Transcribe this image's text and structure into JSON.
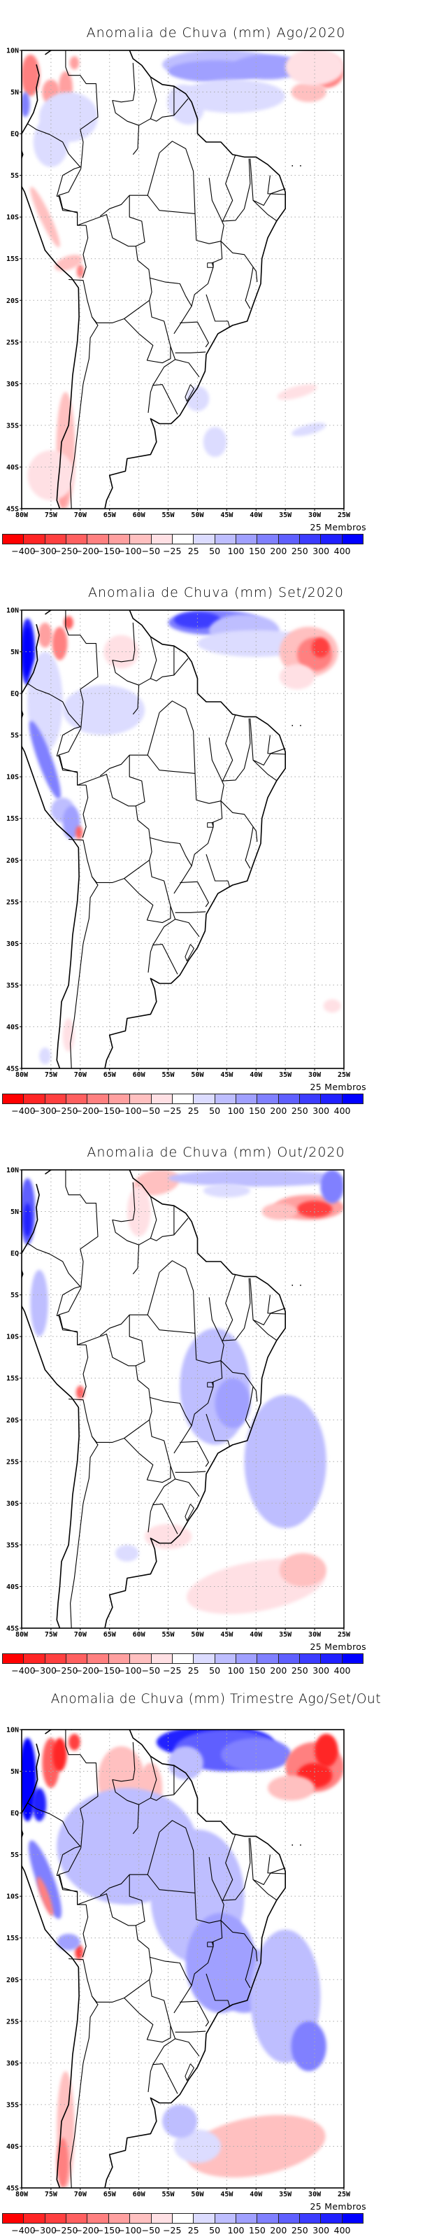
{
  "figure": {
    "shared": {
      "lat_ticks": [
        "10N",
        "5N",
        "EQ",
        "5S",
        "10S",
        "15S",
        "20S",
        "25S",
        "30S",
        "35S",
        "40S",
        "45S"
      ],
      "lon_ticks": [
        "80W",
        "75W",
        "70W",
        "65W",
        "60W",
        "55W",
        "50W",
        "45W",
        "40W",
        "35W",
        "30W",
        "25W"
      ],
      "members_label": "25 Membros",
      "colorbar": {
        "labels": [
          "-400",
          "-300",
          "-250",
          "-200",
          "-150",
          "-100",
          "-50",
          "-25",
          "25",
          "50",
          "100",
          "150",
          "200",
          "250",
          "300",
          "400"
        ],
        "colors": [
          "#ff0000",
          "#ff2525",
          "#ff4040",
          "#ff6060",
          "#ff8080",
          "#ffa0a0",
          "#ffc0c0",
          "#ffe0e4",
          "#ffffff",
          "#dcdcff",
          "#bebeff",
          "#a0a0ff",
          "#8080ff",
          "#5f5fff",
          "#3c3cff",
          "#2020ff",
          "#0000ff"
        ]
      }
    },
    "panels": [
      {
        "title": "Anomalia de Chuva (mm) Ago/2020"
      },
      {
        "title": "Anomalia de Chuva (mm) Set/2020"
      },
      {
        "title": "Anomalia de Chuva (mm) Out/2020"
      },
      {
        "title": "Anomalia de Chuva (mm) Trimestre Ago/Set/Out"
      }
    ]
  },
  "chart_data": [
    {
      "type": "heatmap",
      "title": "Anomalia de Chuva (mm) Ago/2020",
      "variable": "precipitation anomaly (mm)",
      "xlabel": "",
      "ylabel": "",
      "xlim": [
        -80,
        -25
      ],
      "ylim": [
        -45,
        10
      ],
      "grid": true,
      "legend": "bottom colorbar",
      "members": 25,
      "levels": [
        -400,
        -300,
        -250,
        -200,
        -150,
        -100,
        -50,
        -25,
        25,
        50,
        100,
        150,
        200,
        250,
        300,
        400
      ],
      "features": [
        {
          "region": "equatorial Atlantic N of Amazon mouth (~0-10N, 55W-35W)",
          "sign": "positive",
          "magnitude": "100-250"
        },
        {
          "region": "tropical Atlantic (~5-10N, 30W-25W)",
          "sign": "negative",
          "magnitude": "-150 to -300"
        },
        {
          "region": "Colombian Pacific coast (~5-10N, 80W-75W)",
          "sign": "negative",
          "magnitude": "-100 to -300"
        },
        {
          "region": "Pacific off Colombia (~3-6N, 79W)",
          "sign": "positive",
          "magnitude": "150-250"
        },
        {
          "region": "Peruvian Andes (~7-15S, 77W-72W)",
          "sign": "negative",
          "magnitude": "-50 to -150"
        },
        {
          "region": "south-central Chile (~32-45S, 75W-70W)",
          "sign": "negative",
          "magnitude": "-25 to -150"
        },
        {
          "region": "South Atlantic (~30S, 35W-27W)",
          "sign": "negative",
          "magnitude": "-25 to -50"
        },
        {
          "region": "Brazil interior",
          "sign": "near-zero",
          "magnitude": "-25 to 25"
        }
      ]
    },
    {
      "type": "heatmap",
      "title": "Anomalia de Chuva (mm) Set/2020",
      "variable": "precipitation anomaly (mm)",
      "xlim": [
        -80,
        -25
      ],
      "ylim": [
        -45,
        10
      ],
      "grid": true,
      "legend": "bottom colorbar",
      "members": 25,
      "levels": [
        -400,
        -300,
        -250,
        -200,
        -150,
        -100,
        -50,
        -25,
        25,
        50,
        100,
        150,
        200,
        250,
        300,
        400
      ],
      "features": [
        {
          "region": "equatorial Atlantic (~4-10N, 55W-40W)",
          "sign": "positive",
          "magnitude": "50-250"
        },
        {
          "region": "tropical Atlantic (~1-8N, 38W-25W)",
          "sign": "negative",
          "magnitude": "-50 to -250"
        },
        {
          "region": "Pacific off Colombia (~2-8N, 80W-78W)",
          "sign": "positive",
          "magnitude": "200-400"
        },
        {
          "region": "Colombian Andes (~4-8N, 76W-72W)",
          "sign": "negative",
          "magnitude": "-100 to -300"
        },
        {
          "region": "Peruvian Andes (~7-18S, 78W-70W)",
          "sign": "positive",
          "magnitude": "25-200"
        },
        {
          "region": "Lake Titicaca area (~16S, 69W)",
          "sign": "negative",
          "magnitude": "-150 to -250"
        },
        {
          "region": "western Amazon (~0-5S, 73W-60W)",
          "sign": "positive",
          "magnitude": "25-50"
        },
        {
          "region": "Brazil interior",
          "sign": "near-zero",
          "magnitude": "-25 to 25"
        }
      ]
    },
    {
      "type": "heatmap",
      "title": "Anomalia de Chuva (mm) Out/2020",
      "variable": "precipitation anomaly (mm)",
      "xlim": [
        -80,
        -25
      ],
      "ylim": [
        -45,
        10
      ],
      "grid": true,
      "legend": "bottom colorbar",
      "members": 25,
      "levels": [
        -400,
        -300,
        -250,
        -200,
        -150,
        -100,
        -50,
        -25,
        25,
        50,
        100,
        150,
        200,
        250,
        300,
        400
      ],
      "features": [
        {
          "region": "Atlantic (~4-6N, 38W-25W)",
          "sign": "negative",
          "magnitude": "-100 to -300"
        },
        {
          "region": "Guianas coast (~5-10N, 60W-52W)",
          "sign": "negative",
          "magnitude": "-25 to -100"
        },
        {
          "region": "equatorial Atlantic (~6-10N, 50W-25W)",
          "sign": "positive",
          "magnitude": "25-150"
        },
        {
          "region": "Pacific off Colombia (~2-8N, 80W-78W)",
          "sign": "positive",
          "magnitude": "100-300"
        },
        {
          "region": "central & southeast Brazil (~10-25S, 55W-40W)",
          "sign": "positive",
          "magnitude": "25-100"
        },
        {
          "region": "South Atlantic (~15-30S, 40W-25W)",
          "sign": "positive",
          "magnitude": "25-100"
        },
        {
          "region": "South Atlantic (~35-45S, 50W-25W)",
          "sign": "negative",
          "magnitude": "-25 to -50"
        },
        {
          "region": "Lake Titicaca area (~16S, 69W)",
          "sign": "negative",
          "magnitude": "-150 to -250"
        }
      ]
    },
    {
      "type": "heatmap",
      "title": "Anomalia de Chuva (mm) Trimestre Ago/Set/Out",
      "variable": "precipitation anomaly (mm)",
      "xlim": [
        -80,
        -25
      ],
      "ylim": [
        -45,
        10
      ],
      "grid": true,
      "legend": "bottom colorbar",
      "members": 25,
      "levels": [
        -400,
        -300,
        -250,
        -200,
        -150,
        -100,
        -50,
        -25,
        25,
        50,
        100,
        150,
        200,
        250,
        300,
        400
      ],
      "features": [
        {
          "region": "equatorial Atlantic N of Amazon (~4-10N, 55W-38W)",
          "sign": "positive",
          "magnitude": "200-400+"
        },
        {
          "region": "tropical Atlantic (~2-9N, 37W-28W)",
          "sign": "negative",
          "magnitude": "-150 to -400"
        },
        {
          "region": "Pacific off Colombia (~0-8N, 80W-78W)",
          "sign": "positive",
          "magnitude": "300-400+"
        },
        {
          "region": "Colombian Andes (~3-10N, 78W-72W)",
          "sign": "negative",
          "magnitude": "-150 to -400"
        },
        {
          "region": "Venezuela/Guianas (~0-8N, 68W-56W)",
          "sign": "negative",
          "magnitude": "-25 to -100"
        },
        {
          "region": "Amazon & central/southeast Brazil (~0-25S, 70W-40W)",
          "sign": "positive",
          "magnitude": "25-150"
        },
        {
          "region": "South Atlantic (~15-35S, 42W-25W)",
          "sign": "positive",
          "magnitude": "50-150"
        },
        {
          "region": "Lake Titicaca area (~16S, 69W)",
          "sign": "negative",
          "magnitude": "-200 to -300"
        },
        {
          "region": "south-central Chile (~32-45S, 75W-70W)",
          "sign": "negative",
          "magnitude": "-25 to -200"
        },
        {
          "region": "South Atlantic (~32-45S, 50W-25W)",
          "sign": "negative",
          "magnitude": "-25 to -50"
        }
      ]
    }
  ]
}
